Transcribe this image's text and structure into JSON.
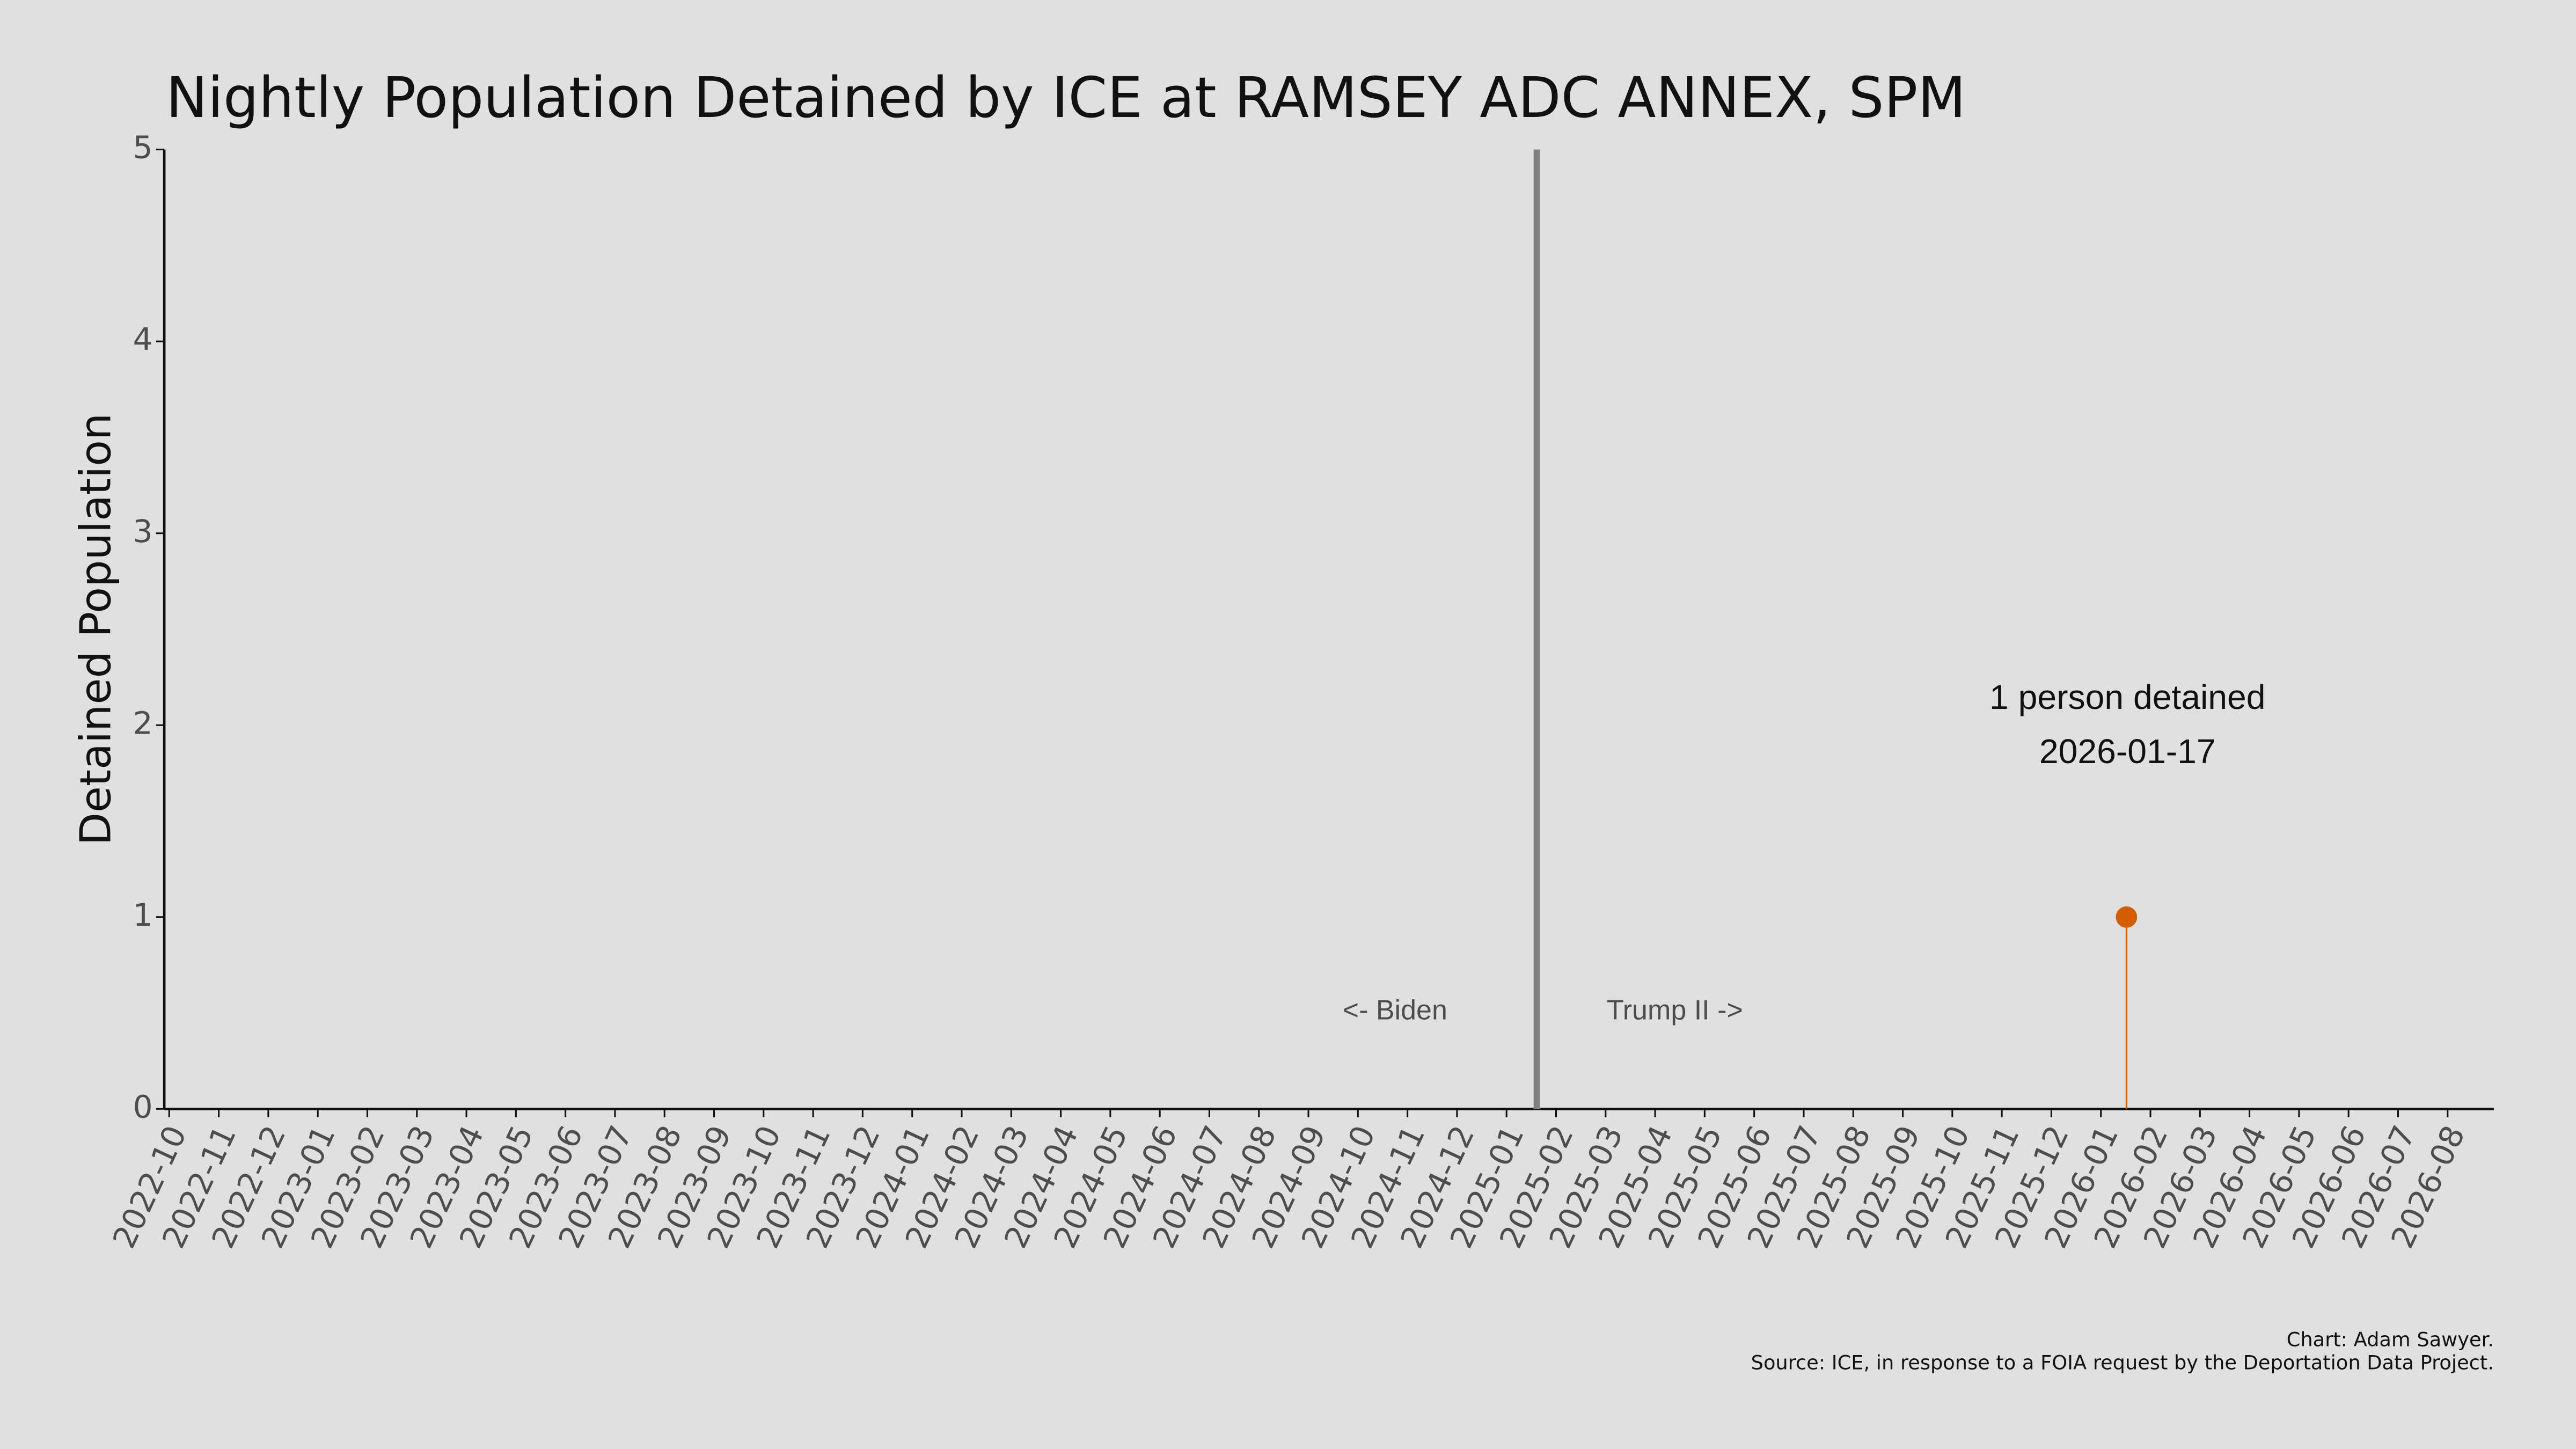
{
  "chart_data": {
    "type": "lollipop",
    "title": "Nightly Population Detained by ICE at RAMSEY ADC ANNEX, SPM",
    "y_label": "Detained Population",
    "x": [
      "2026-01-17"
    ],
    "series": [
      {
        "name": "Detained Population",
        "color": "#d55e00",
        "values": [
          1
        ]
      }
    ],
    "xlim": [
      "2022-10",
      "2026-09"
    ],
    "xticks": [
      "2022-10",
      "2022-11",
      "2022-12",
      "2023-01",
      "2023-02",
      "2023-03",
      "2023-04",
      "2023-05",
      "2023-06",
      "2023-07",
      "2023-08",
      "2023-09",
      "2023-10",
      "2023-11",
      "2023-12",
      "2024-01",
      "2024-02",
      "2024-03",
      "2024-04",
      "2024-05",
      "2024-06",
      "2024-07",
      "2024-08",
      "2024-09",
      "2024-10",
      "2024-11",
      "2024-12",
      "2025-01",
      "2025-02",
      "2025-03",
      "2025-04",
      "2025-05",
      "2025-06",
      "2025-07",
      "2025-08",
      "2025-09",
      "2025-10",
      "2025-11",
      "2025-12",
      "2026-01",
      "2026-02",
      "2026-03",
      "2026-04",
      "2026-05",
      "2026-06",
      "2026-07",
      "2026-08"
    ],
    "ylim": [
      0,
      5
    ],
    "yticks": [
      0,
      1,
      2,
      3,
      4,
      5
    ],
    "vline": {
      "x": "2025-01-20",
      "color": "#808080"
    },
    "annotations": [
      "1 person detained",
      "2026-01-17",
      "<- Biden",
      "Trump II ->"
    ],
    "caption": [
      "Chart: Adam Sawyer.",
      "Source: ICE, in response to a FOIA request by the Deportation Data Project."
    ],
    "grid": false
  }
}
